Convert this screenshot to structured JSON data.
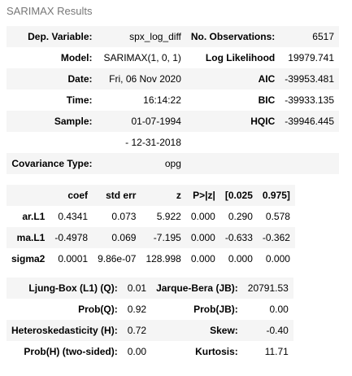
{
  "caption": "SARIMAX Results",
  "summary": {
    "rows": [
      [
        "Dep. Variable:",
        "spx_log_diff",
        "No. Observations:",
        "6517"
      ],
      [
        "Model:",
        "SARIMAX(1, 0, 1)",
        "Log Likelihood",
        "19979.741"
      ],
      [
        "Date:",
        "Fri, 06 Nov 2020",
        "AIC",
        "-39953.481"
      ],
      [
        "Time:",
        "16:14:22",
        "BIC",
        "-39933.135"
      ],
      [
        "Sample:",
        "01-07-1994",
        "HQIC",
        "-39946.445"
      ],
      [
        "",
        "- 12-31-2018",
        "",
        ""
      ],
      [
        "Covariance Type:",
        "opg",
        "",
        ""
      ]
    ]
  },
  "coef_table": {
    "headers": [
      "",
      "coef",
      "std err",
      "z",
      "P>|z|",
      "[0.025",
      "0.975]"
    ],
    "rows": [
      [
        "ar.L1",
        "0.4341",
        "0.073",
        "5.922",
        "0.000",
        "0.290",
        "0.578"
      ],
      [
        "ma.L1",
        "-0.4978",
        "0.069",
        "-7.195",
        "0.000",
        "-0.633",
        "-0.362"
      ],
      [
        "sigma2",
        "0.0001",
        "9.86e-07",
        "128.998",
        "0.000",
        "0.000",
        "0.000"
      ]
    ]
  },
  "diagnostics": {
    "rows": [
      [
        "Ljung-Box (L1) (Q):",
        "0.01",
        "Jarque-Bera (JB):",
        "20791.53"
      ],
      [
        "Prob(Q):",
        "0.92",
        "Prob(JB):",
        "0.00"
      ],
      [
        "Heteroskedasticity (H):",
        "0.72",
        "Skew:",
        "-0.40"
      ],
      [
        "Prob(H) (two-sided):",
        "0.00",
        "Kurtosis:",
        "11.71"
      ]
    ]
  }
}
